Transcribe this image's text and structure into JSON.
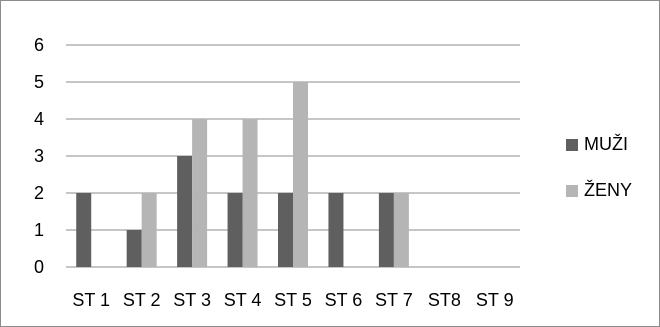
{
  "chart_data": {
    "type": "bar",
    "categories": [
      "ST 1",
      "ST 2",
      "ST 3",
      "ST 4",
      "ST 5",
      "ST 6",
      "ST 7",
      "ST8",
      "ST 9"
    ],
    "series": [
      {
        "name": "MUŽI",
        "values": [
          2,
          1,
          3,
          2,
          2,
          2,
          2,
          0,
          0
        ],
        "color": "#5f5f5f"
      },
      {
        "name": "ŽENY",
        "values": [
          0,
          2,
          4,
          4,
          5,
          0,
          2,
          0,
          0
        ],
        "color": "#b5b5b5"
      }
    ],
    "ylim": [
      0,
      6
    ],
    "yticks": [
      "0",
      "1",
      "2",
      "3",
      "4",
      "5",
      "6"
    ],
    "grid": true,
    "legend_position": "right"
  }
}
